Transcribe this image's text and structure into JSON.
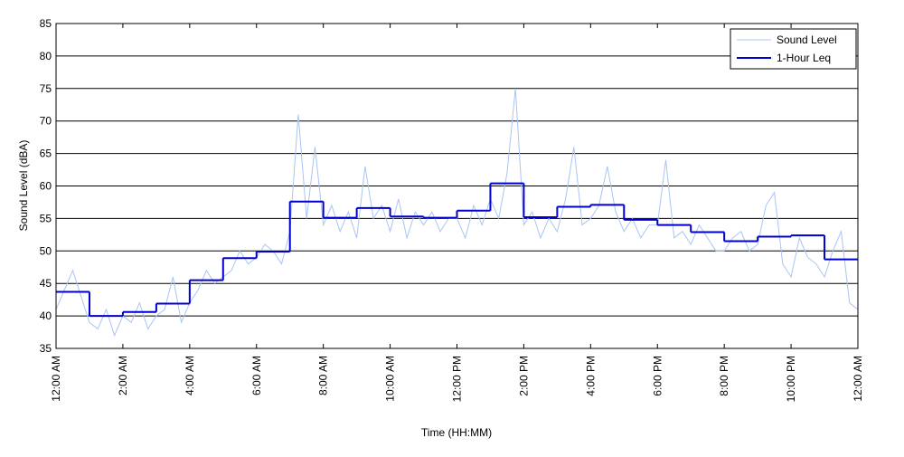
{
  "chart_data": {
    "type": "line",
    "xlabel": "Time (HH:MM)",
    "ylabel": "Sound Level (dBA)",
    "xlim": [
      0,
      24
    ],
    "ylim": [
      35,
      85
    ],
    "xticks": [
      {
        "value": 0,
        "label": "12:00 AM"
      },
      {
        "value": 2,
        "label": "2:00 AM"
      },
      {
        "value": 4,
        "label": "4:00 AM"
      },
      {
        "value": 6,
        "label": "6:00 AM"
      },
      {
        "value": 8,
        "label": "8:00 AM"
      },
      {
        "value": 10,
        "label": "10:00 AM"
      },
      {
        "value": 12,
        "label": "12:00 PM"
      },
      {
        "value": 14,
        "label": "2:00 PM"
      },
      {
        "value": 16,
        "label": "4:00 PM"
      },
      {
        "value": 18,
        "label": "6:00 PM"
      },
      {
        "value": 20,
        "label": "8:00 PM"
      },
      {
        "value": 22,
        "label": "10:00 PM"
      },
      {
        "value": 24,
        "label": "12:00 AM"
      }
    ],
    "yticks": [
      35,
      40,
      45,
      50,
      55,
      60,
      65,
      70,
      75,
      80,
      85
    ],
    "grid": true,
    "legend": "upper right",
    "series": [
      {
        "name": "Sound Level",
        "color": "#a9c4f5",
        "style": "line",
        "x": [
          0,
          0.25,
          0.5,
          0.75,
          1,
          1.25,
          1.5,
          1.75,
          2,
          2.25,
          2.5,
          2.75,
          3,
          3.25,
          3.5,
          3.75,
          4,
          4.25,
          4.5,
          4.75,
          5,
          5.25,
          5.5,
          5.75,
          6,
          6.25,
          6.5,
          6.75,
          7,
          7.25,
          7.5,
          7.75,
          8,
          8.25,
          8.5,
          8.75,
          9,
          9.25,
          9.5,
          9.75,
          10,
          10.25,
          10.5,
          10.75,
          11,
          11.25,
          11.5,
          11.75,
          12,
          12.25,
          12.5,
          12.75,
          13,
          13.25,
          13.5,
          13.75,
          14,
          14.25,
          14.5,
          14.75,
          15,
          15.25,
          15.5,
          15.75,
          16,
          16.25,
          16.5,
          16.75,
          17,
          17.25,
          17.5,
          17.75,
          18,
          18.25,
          18.5,
          18.75,
          19,
          19.25,
          19.5,
          19.75,
          20,
          20.25,
          20.5,
          20.75,
          21,
          21.25,
          21.5,
          21.75,
          22,
          22.25,
          22.5,
          22.75,
          23,
          23.25,
          23.5,
          23.75,
          24
        ],
        "values": [
          41,
          44,
          47,
          43,
          39,
          38,
          41,
          37,
          40,
          39,
          42,
          38,
          40,
          41,
          46,
          39,
          42,
          44,
          47,
          45,
          46,
          47,
          50,
          48,
          49,
          51,
          50,
          48,
          53,
          71,
          55,
          66,
          54,
          57,
          53,
          56,
          52,
          63,
          55,
          57,
          53,
          58,
          52,
          56,
          54,
          56,
          53,
          55,
          55,
          52,
          57,
          54,
          58,
          55,
          62,
          75,
          54,
          56,
          52,
          55,
          53,
          58,
          66,
          54,
          55,
          57,
          63,
          56,
          53,
          55,
          52,
          54,
          54,
          64,
          52,
          53,
          51,
          54,
          52,
          50,
          50,
          52,
          53,
          50,
          51,
          57,
          59,
          48,
          46,
          52,
          49,
          48,
          46,
          50,
          53,
          42,
          41
        ]
      },
      {
        "name": "1-Hour Leq",
        "color": "#0000cc",
        "style": "step",
        "x": [
          0,
          1,
          2,
          3,
          4,
          5,
          6,
          7,
          8,
          9,
          10,
          11,
          12,
          13,
          14,
          15,
          16,
          17,
          18,
          19,
          20,
          21,
          22,
          23
        ],
        "values": [
          43.7,
          40.0,
          40.6,
          41.9,
          45.5,
          48.9,
          49.9,
          57.6,
          55.1,
          56.6,
          55.3,
          55.1,
          56.2,
          60.4,
          55.2,
          56.8,
          57.1,
          54.8,
          54.0,
          52.9,
          51.5,
          52.2,
          52.4,
          48.7
        ]
      }
    ]
  }
}
